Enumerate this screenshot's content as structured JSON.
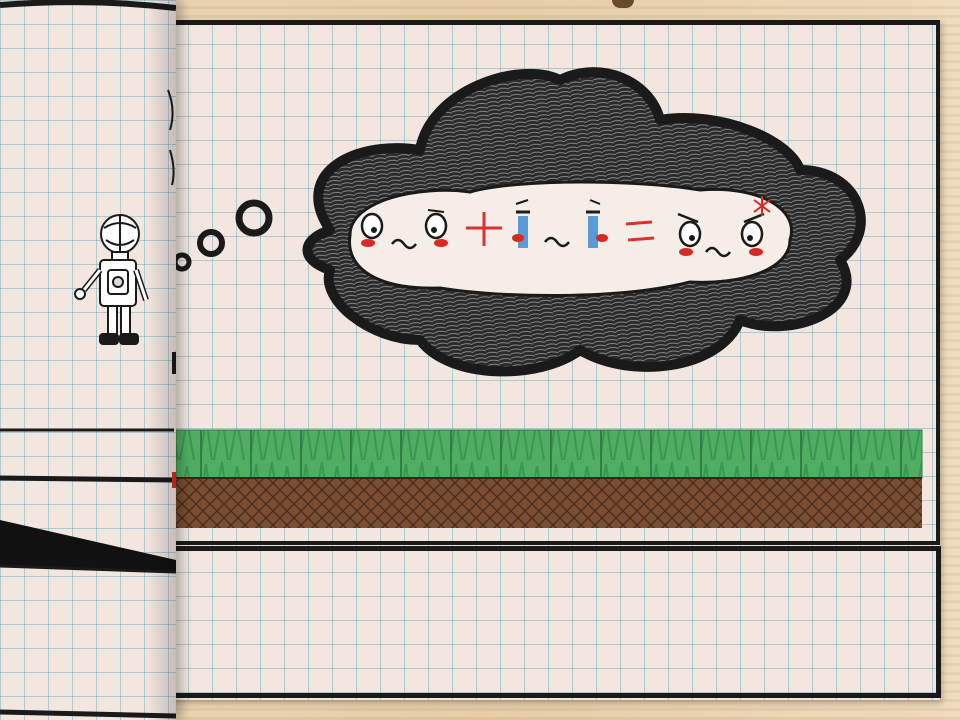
{
  "scene": {
    "name": "notebook-comic-level",
    "thought_bubble": {
      "equation_faces": [
        "calm-face",
        "crying-face",
        "angry-face"
      ],
      "operators": [
        "+",
        "="
      ],
      "colors": {
        "outline": "#1a1a1a",
        "operator": "#e0302a",
        "tears": "#5b9bd5",
        "blush": "#d62b22"
      }
    },
    "colors": {
      "grass": "#4fae62",
      "grass_dark": "#2f7d45",
      "dirt": "#7a4e32",
      "dirt_dark": "#4a2c1c",
      "paper": "#f2e6de",
      "grid_line": "#5fa5be",
      "ink": "#1a1a1a"
    },
    "icons": [
      "robot-character-icon",
      "red-glove-icon",
      "page-pin-icon"
    ]
  }
}
